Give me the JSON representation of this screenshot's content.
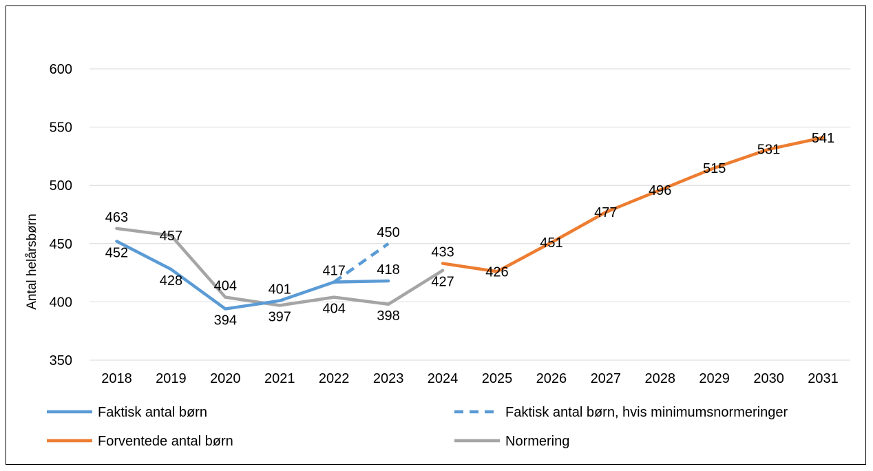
{
  "chart_data": {
    "type": "line",
    "title": "",
    "xlabel": "",
    "ylabel": "Antal helårsbørn",
    "ylim": [
      350,
      600
    ],
    "yticks": [
      350,
      400,
      450,
      500,
      550,
      600
    ],
    "grid": true,
    "legend_position": "bottom",
    "categories": [
      "2018",
      "2019",
      "2020",
      "2021",
      "2022",
      "2023",
      "2024",
      "2025",
      "2026",
      "2027",
      "2028",
      "2029",
      "2030",
      "2031"
    ],
    "series": [
      {
        "name": "Faktisk antal børn",
        "color": "#5b9bd5",
        "dash": false,
        "values": [
          452,
          428,
          394,
          401,
          417,
          418,
          null,
          null,
          null,
          null,
          null,
          null,
          null,
          null
        ],
        "label_pos": [
          "below",
          "below",
          "below",
          "above",
          "above",
          "above"
        ]
      },
      {
        "name": "Faktisk antal børn, hvis minimumsnormeringer",
        "color": "#5b9bd5",
        "dash": true,
        "values": [
          null,
          null,
          null,
          null,
          417,
          450,
          null,
          null,
          null,
          null,
          null,
          null,
          null,
          null
        ],
        "labels_shown": [
          false,
          false,
          false,
          false,
          false,
          true
        ],
        "label_pos": [
          null,
          null,
          null,
          null,
          null,
          "above"
        ]
      },
      {
        "name": "Forventede antal børn",
        "color": "#ed7d31",
        "dash": false,
        "values": [
          null,
          null,
          null,
          null,
          null,
          null,
          433,
          426,
          451,
          477,
          496,
          515,
          531,
          541
        ],
        "label_pos": [
          null,
          null,
          null,
          null,
          null,
          null,
          "above",
          "center",
          "center",
          "center",
          "center",
          "center",
          "center",
          "center"
        ]
      },
      {
        "name": "Normering",
        "color": "#a5a5a5",
        "dash": false,
        "values": [
          463,
          457,
          404,
          397,
          404,
          398,
          427,
          null,
          null,
          null,
          null,
          null,
          null,
          null
        ],
        "label_pos": [
          "above",
          "center",
          "above",
          "below",
          "below",
          "below",
          "below"
        ]
      }
    ]
  }
}
